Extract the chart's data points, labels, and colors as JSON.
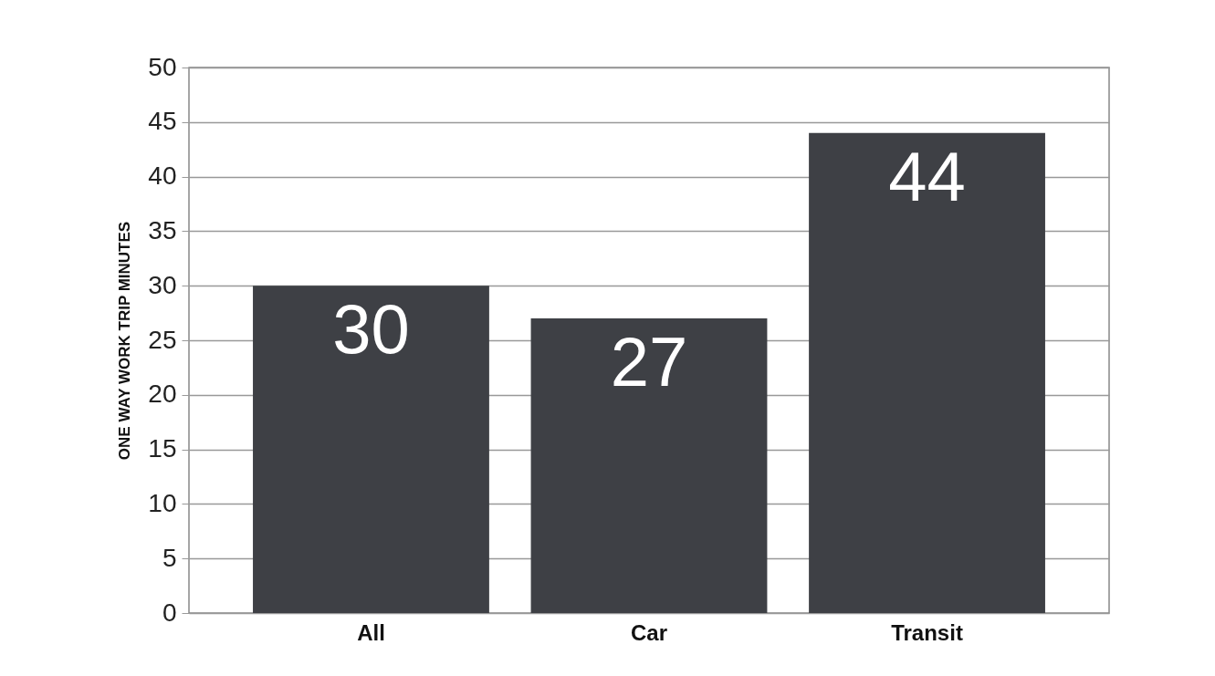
{
  "chart_data": {
    "type": "bar",
    "ylabel": "ONE WAY WORK TRIP MINUTES",
    "categories": [
      "All",
      "Car",
      "Transit"
    ],
    "values": [
      30,
      27,
      44
    ],
    "color": "#3e4045",
    "ylim": [
      0,
      50
    ],
    "yticks": [
      0,
      5,
      10,
      15,
      20,
      25,
      30,
      35,
      40,
      45,
      50
    ],
    "grid": "y",
    "data_labels": true
  }
}
